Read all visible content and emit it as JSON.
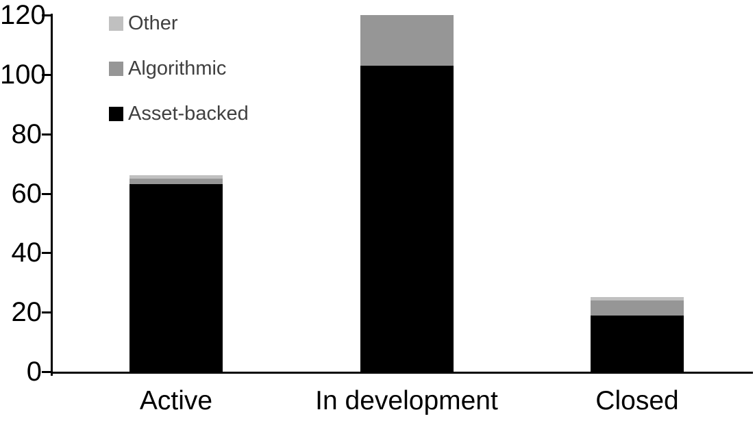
{
  "chart_data": {
    "type": "bar",
    "stacked": true,
    "title": "",
    "xlabel": "",
    "ylabel": "",
    "categories": [
      "Active",
      "In development",
      "Closed"
    ],
    "series": [
      {
        "name": "Asset-backed",
        "color": "#000000",
        "values": [
          63,
          103,
          19
        ]
      },
      {
        "name": "Algorithmic",
        "color": "#969696",
        "values": [
          2,
          17,
          5
        ]
      },
      {
        "name": "Other",
        "color": "#c0c0c0",
        "values": [
          1,
          0,
          1
        ]
      }
    ],
    "totals": [
      66,
      120,
      25
    ],
    "ylim": [
      0,
      120
    ],
    "yticks": [
      "0",
      "20",
      "40",
      "60",
      "80",
      "100",
      "120"
    ],
    "grid": false,
    "legend": {
      "position": "top-left",
      "order": [
        "Other",
        "Algorithmic",
        "Asset-backed"
      ],
      "text_color": "#404040"
    },
    "axis_color": "#000000",
    "background": "#ffffff"
  }
}
